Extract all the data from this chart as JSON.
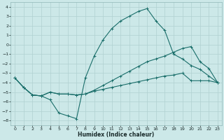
{
  "xlabel": "Humidex (Indice chaleur)",
  "bg_color": "#cce8e8",
  "grid_color": "#b0d0d0",
  "line_color": "#1a6e6a",
  "xlim": [
    -0.5,
    23.5
  ],
  "ylim": [
    -8.5,
    4.5
  ],
  "xticks": [
    0,
    1,
    2,
    3,
    4,
    5,
    6,
    7,
    8,
    9,
    10,
    11,
    12,
    13,
    14,
    15,
    16,
    17,
    18,
    19,
    20,
    21,
    22,
    23
  ],
  "yticks": [
    -8,
    -7,
    -6,
    -5,
    -4,
    -3,
    -2,
    -1,
    0,
    1,
    2,
    3,
    4
  ],
  "series": [
    {
      "x": [
        0,
        1,
        2,
        3,
        4,
        5,
        6,
        7,
        8,
        9,
        10,
        11,
        12,
        13,
        14,
        15,
        16,
        17,
        18,
        19,
        20,
        21,
        22,
        23
      ],
      "y": [
        -3.5,
        -4.5,
        -5.3,
        -5.4,
        -5.8,
        -7.2,
        -7.5,
        -7.8,
        -3.5,
        -1.2,
        0.5,
        1.7,
        2.5,
        3.0,
        3.5,
        3.8,
        2.5,
        1.5,
        -1.0,
        -1.5,
        -2.2,
        -2.6,
        -3.3,
        -4.0
      ]
    },
    {
      "x": [
        0,
        1,
        2,
        3,
        4,
        5,
        6,
        7,
        8,
        9,
        10,
        11,
        12,
        13,
        14,
        15,
        16,
        17,
        18,
        19,
        20,
        21,
        22,
        23
      ],
      "y": [
        -3.5,
        -4.5,
        -5.3,
        -5.4,
        -5.0,
        -5.2,
        -5.2,
        -5.3,
        -5.2,
        -4.8,
        -4.3,
        -3.8,
        -3.3,
        -2.8,
        -2.3,
        -1.8,
        -1.5,
        -1.2,
        -0.8,
        -0.4,
        -0.2,
        -1.8,
        -2.5,
        -4.0
      ]
    },
    {
      "x": [
        0,
        1,
        2,
        3,
        4,
        5,
        6,
        7,
        8,
        9,
        10,
        11,
        12,
        13,
        14,
        15,
        16,
        17,
        18,
        19,
        20,
        21,
        22,
        23
      ],
      "y": [
        -3.5,
        -4.5,
        -5.3,
        -5.4,
        -5.0,
        -5.2,
        -5.2,
        -5.3,
        -5.2,
        -4.9,
        -4.7,
        -4.5,
        -4.3,
        -4.1,
        -3.9,
        -3.7,
        -3.5,
        -3.3,
        -3.2,
        -3.0,
        -3.8,
        -3.8,
        -3.8,
        -4.0
      ]
    }
  ]
}
